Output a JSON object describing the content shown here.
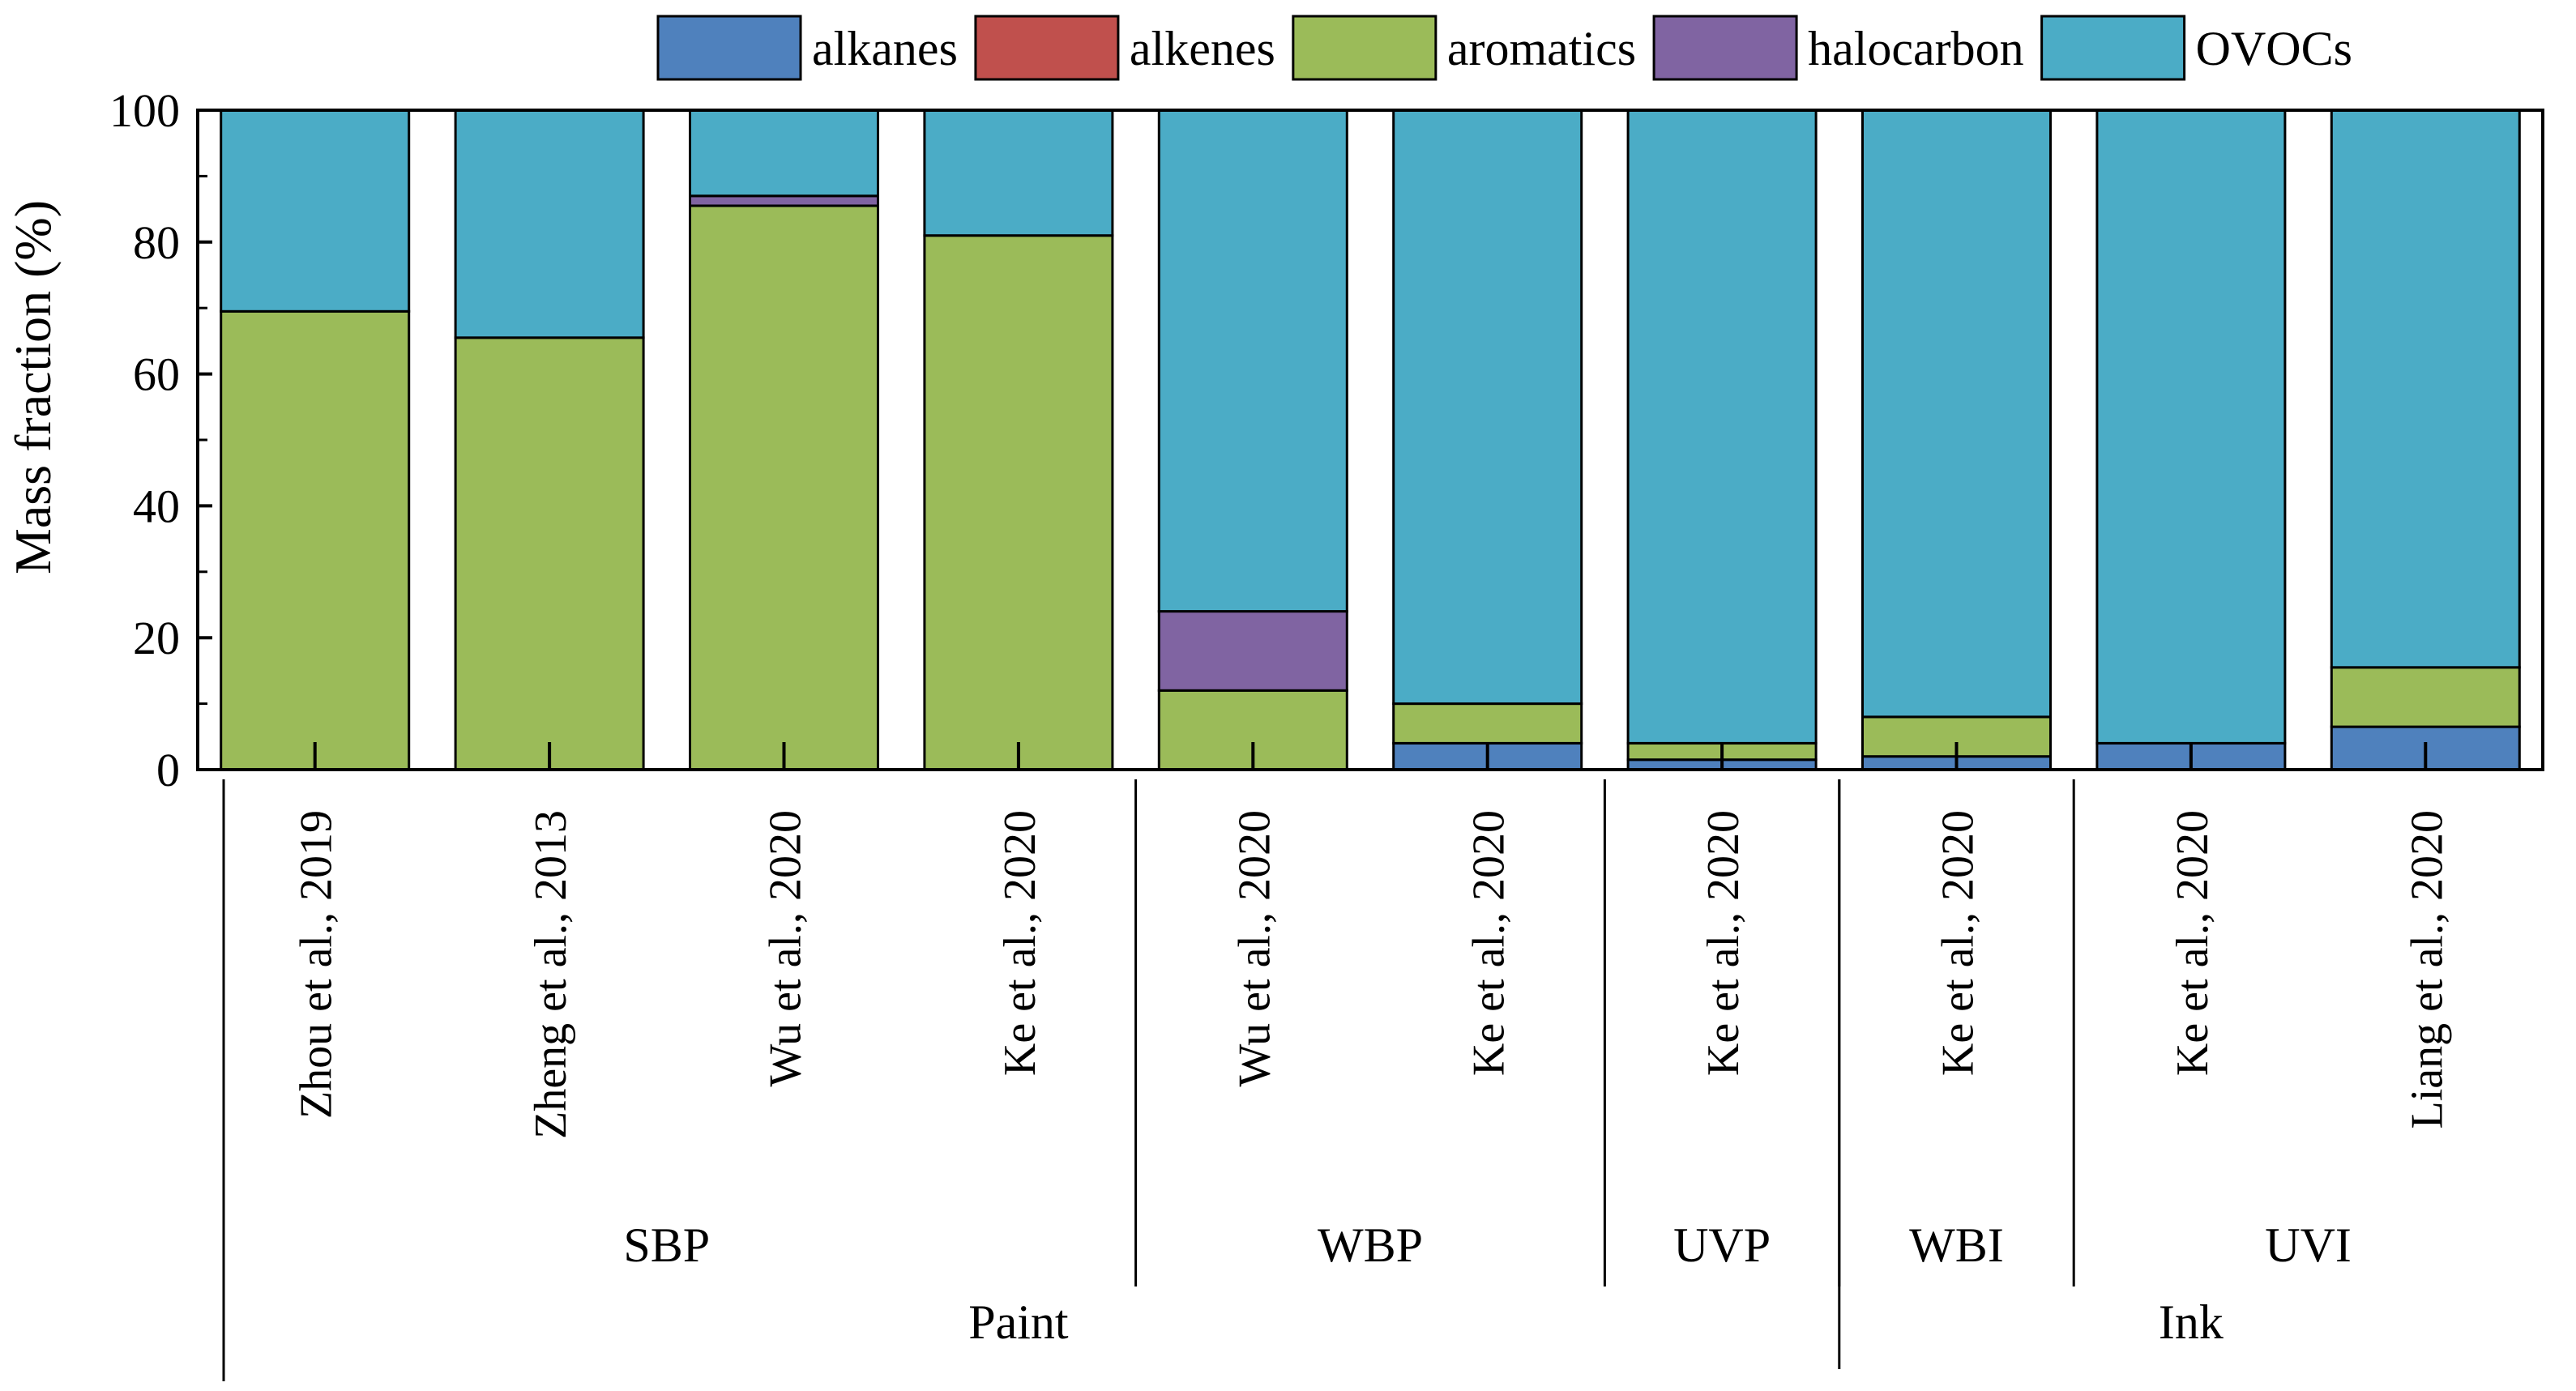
{
  "chart_data": {
    "type": "stacked-bar",
    "ylabel": "Mass fraction (%)",
    "xlabel": "",
    "ylim": [
      0,
      100
    ],
    "yticks": [
      0,
      20,
      40,
      60,
      80,
      100
    ],
    "categories": [
      "Zhou et al., 2019",
      "Zheng et al., 2013",
      "Wu et al., 2020",
      "Ke et al., 2020",
      "Wu et al., 2020",
      "Ke et al., 2020",
      "Ke et al., 2020",
      "Ke et al., 2020",
      "Ke et al., 2020",
      "Liang et al., 2020"
    ],
    "series": [
      {
        "name": "alkanes",
        "color": "#4f81bd",
        "values": [
          0,
          0,
          0,
          0,
          0,
          4,
          1.5,
          2,
          4,
          6.5
        ]
      },
      {
        "name": "alkenes",
        "color": "#c0504d",
        "values": [
          0,
          0,
          0,
          0,
          0,
          0,
          0,
          0,
          0,
          0
        ]
      },
      {
        "name": "aromatics",
        "color": "#9bbb59",
        "values": [
          69.5,
          65.5,
          85.5,
          81,
          12,
          6,
          2.5,
          6,
          0,
          9
        ]
      },
      {
        "name": "halocarbon",
        "color": "#8064a2",
        "values": [
          0,
          0,
          1.5,
          0,
          12,
          0,
          0,
          0,
          0,
          0
        ]
      },
      {
        "name": "OVOCs",
        "color": "#4bacc6",
        "values": [
          30.5,
          34.5,
          13,
          19,
          76,
          90,
          96,
          92,
          96,
          84.5
        ]
      }
    ],
    "subgroups": [
      {
        "label": "SBP",
        "start": 0,
        "end": 3
      },
      {
        "label": "WBP",
        "start": 4,
        "end": 5
      },
      {
        "label": "UVP",
        "start": 6,
        "end": 6
      },
      {
        "label": "WBI",
        "start": 7,
        "end": 7
      },
      {
        "label": "UVI",
        "start": 8,
        "end": 9
      }
    ],
    "groups": [
      {
        "label": "Paint",
        "start": 0,
        "end": 6
      },
      {
        "label": "Ink",
        "start": 7,
        "end": 9
      }
    ],
    "legend_position": "top"
  }
}
